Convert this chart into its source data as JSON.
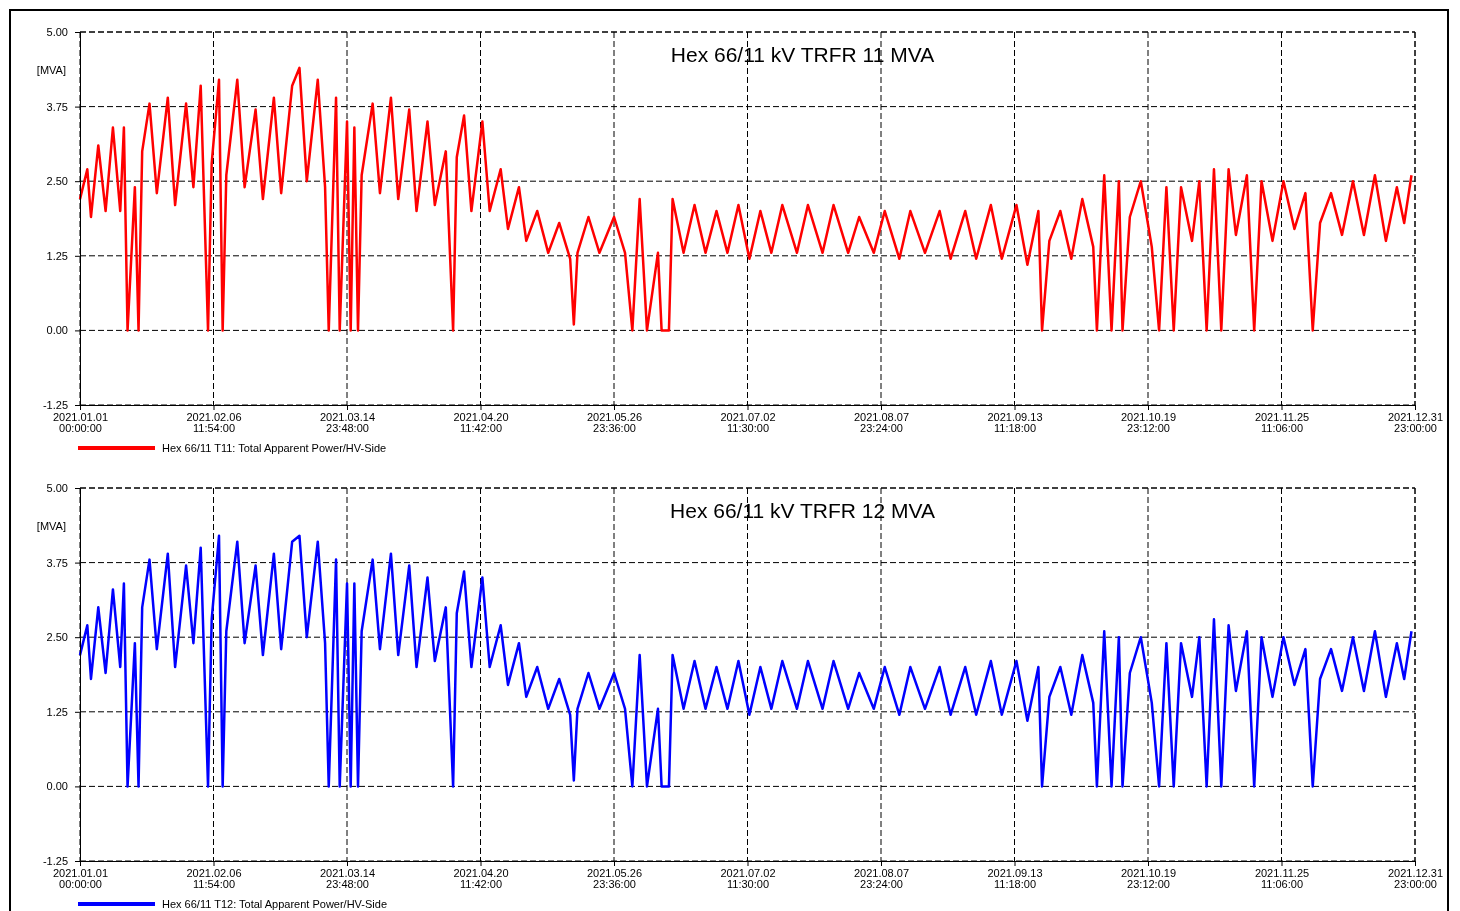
{
  "chart_data": [
    {
      "type": "line",
      "title": "Hex 66/11 kV TRFR 11 MVA",
      "ylabel": "[MVA]",
      "x": [
        "2021-01-01",
        "2021-01-03",
        "2021-01-04",
        "2021-01-06",
        "2021-01-08",
        "2021-01-10",
        "2021-01-12",
        "2021-01-13",
        "2021-01-14",
        "2021-01-16",
        "2021-01-17",
        "2021-01-18",
        "2021-01-20",
        "2021-01-22",
        "2021-01-25",
        "2021-01-27",
        "2021-01-30",
        "2021-02-01",
        "2021-02-03",
        "2021-02-05",
        "2021-02-06",
        "2021-02-08",
        "2021-02-09",
        "2021-02-10",
        "2021-02-13",
        "2021-02-15",
        "2021-02-18",
        "2021-02-20",
        "2021-02-23",
        "2021-02-25",
        "2021-02-28",
        "2021-03-02",
        "2021-03-04",
        "2021-03-07",
        "2021-03-09",
        "2021-03-10",
        "2021-03-12",
        "2021-03-13",
        "2021-03-15",
        "2021-03-16",
        "2021-03-17",
        "2021-03-18",
        "2021-03-19",
        "2021-03-22",
        "2021-03-24",
        "2021-03-27",
        "2021-03-29",
        "2021-04-01",
        "2021-04-03",
        "2021-04-06",
        "2021-04-08",
        "2021-04-11",
        "2021-04-13",
        "2021-04-14",
        "2021-04-16",
        "2021-04-18",
        "2021-04-21",
        "2021-04-23",
        "2021-04-26",
        "2021-04-28",
        "2021-05-01",
        "2021-05-03",
        "2021-05-06",
        "2021-05-09",
        "2021-05-12",
        "2021-05-15",
        "2021-05-16",
        "2021-05-17",
        "2021-05-20",
        "2021-05-23",
        "2021-05-27",
        "2021-05-30",
        "2021-06-01",
        "2021-06-03",
        "2021-06-05",
        "2021-06-08",
        "2021-06-09",
        "2021-06-11",
        "2021-06-12",
        "2021-06-15",
        "2021-06-18",
        "2021-06-21",
        "2021-06-24",
        "2021-06-27",
        "2021-06-30",
        "2021-07-03",
        "2021-07-06",
        "2021-07-09",
        "2021-07-12",
        "2021-07-16",
        "2021-07-19",
        "2021-07-23",
        "2021-07-26",
        "2021-07-30",
        "2021-08-02",
        "2021-08-06",
        "2021-08-09",
        "2021-08-13",
        "2021-08-16",
        "2021-08-20",
        "2021-08-24",
        "2021-08-27",
        "2021-08-31",
        "2021-09-03",
        "2021-09-07",
        "2021-09-10",
        "2021-09-14",
        "2021-09-17",
        "2021-09-20",
        "2021-09-21",
        "2021-09-23",
        "2021-09-26",
        "2021-09-29",
        "2021-10-02",
        "2021-10-05",
        "2021-10-06",
        "2021-10-08",
        "2021-10-10",
        "2021-10-12",
        "2021-10-13",
        "2021-10-15",
        "2021-10-18",
        "2021-10-21",
        "2021-10-23",
        "2021-10-25",
        "2021-10-27",
        "2021-10-29",
        "2021-11-01",
        "2021-11-03",
        "2021-11-05",
        "2021-11-07",
        "2021-11-09",
        "2021-11-11",
        "2021-11-13",
        "2021-11-16",
        "2021-11-18",
        "2021-11-20",
        "2021-11-23",
        "2021-11-26",
        "2021-11-29",
        "2021-12-02",
        "2021-12-04",
        "2021-12-06",
        "2021-12-09",
        "2021-12-12",
        "2021-12-15",
        "2021-12-18",
        "2021-12-21",
        "2021-12-24",
        "2021-12-27",
        "2021-12-29",
        "2021-12-31"
      ],
      "series": [
        {
          "name": "Hex 66/11 T11: Total Apparent Power/HV-Side",
          "color": "#ff0000",
          "values": [
            2.2,
            2.7,
            1.9,
            3.1,
            2.0,
            3.4,
            2.0,
            3.4,
            0,
            2.4,
            0,
            3.0,
            3.8,
            2.3,
            3.9,
            2.1,
            3.8,
            2.4,
            4.1,
            0,
            2.8,
            4.2,
            0,
            2.6,
            4.2,
            2.4,
            3.7,
            2.2,
            3.9,
            2.3,
            4.1,
            4.4,
            2.5,
            4.2,
            2.4,
            0,
            3.9,
            0,
            3.5,
            0,
            3.4,
            0,
            2.6,
            3.8,
            2.3,
            3.9,
            2.2,
            3.7,
            2.0,
            3.5,
            2.1,
            3.0,
            0,
            2.9,
            3.6,
            2.0,
            3.5,
            2.0,
            2.7,
            1.7,
            2.4,
            1.5,
            2.0,
            1.3,
            1.8,
            1.2,
            0.1,
            1.3,
            1.9,
            1.3,
            1.9,
            1.3,
            0,
            2.2,
            0,
            1.3,
            0,
            0,
            2.2,
            1.3,
            2.1,
            1.3,
            2.0,
            1.3,
            2.1,
            1.2,
            2.0,
            1.3,
            2.1,
            1.3,
            2.1,
            1.3,
            2.1,
            1.3,
            1.9,
            1.3,
            2.0,
            1.2,
            2.0,
            1.3,
            2.0,
            1.2,
            2.0,
            1.2,
            2.1,
            1.2,
            2.1,
            1.1,
            2.0,
            0,
            1.5,
            2.0,
            1.2,
            2.2,
            1.4,
            0,
            2.6,
            0,
            2.5,
            0,
            1.9,
            2.5,
            1.4,
            0,
            2.4,
            0,
            2.4,
            1.5,
            2.5,
            0,
            2.7,
            0,
            2.7,
            1.6,
            2.6,
            0,
            2.5,
            1.5,
            2.5,
            1.7,
            2.3,
            0,
            1.8,
            2.3,
            1.6,
            2.5,
            1.6,
            2.6,
            1.5,
            2.4,
            1.8,
            2.6
          ]
        }
      ],
      "xlim": [
        "2021-01-01T00:00",
        "2021-12-31T23:00"
      ],
      "xticks": [
        {
          "value": "2021-01-01T00:00",
          "label": "2021.01.01\n00:00:00"
        },
        {
          "value": "2021-02-06T11:54",
          "label": "2021.02.06\n11:54:00"
        },
        {
          "value": "2021-03-14T23:48",
          "label": "2021.03.14\n23:48:00"
        },
        {
          "value": "2021-04-20T11:42",
          "label": "2021.04.20\n11:42:00"
        },
        {
          "value": "2021-05-26T23:36",
          "label": "2021.05.26\n23:36:00"
        },
        {
          "value": "2021-07-02T11:30",
          "label": "2021.07.02\n11:30:00"
        },
        {
          "value": "2021-08-07T23:24",
          "label": "2021.08.07\n23:24:00"
        },
        {
          "value": "2021-09-13T11:18",
          "label": "2021.09.13\n11:18:00"
        },
        {
          "value": "2021-10-19T23:12",
          "label": "2021.10.19\n23:12:00"
        },
        {
          "value": "2021-11-25T11:06",
          "label": "2021.11.25\n11:06:00"
        },
        {
          "value": "2021-12-31T23:00",
          "label": "2021.12.31\n23:00:00"
        }
      ],
      "ylim": [
        -1.25,
        5
      ],
      "yticks": [
        {
          "value": -1.25,
          "label": "-1.25"
        },
        {
          "value": 0,
          "label": "0.00"
        },
        {
          "value": 1.25,
          "label": "1.25"
        },
        {
          "value": 2.5,
          "label": "2.50"
        },
        {
          "value": 3.75,
          "label": "3.75"
        },
        {
          "value": 5,
          "label": "5.00"
        }
      ],
      "grid": true,
      "legend": "bottom"
    },
    {
      "type": "line",
      "title": "Hex 66/11 kV TRFR 12 MVA",
      "ylabel": "[MVA]",
      "x": [
        "2021-01-01",
        "2021-01-03",
        "2021-01-04",
        "2021-01-06",
        "2021-01-08",
        "2021-01-10",
        "2021-01-12",
        "2021-01-13",
        "2021-01-14",
        "2021-01-16",
        "2021-01-17",
        "2021-01-18",
        "2021-01-20",
        "2021-01-22",
        "2021-01-25",
        "2021-01-27",
        "2021-01-30",
        "2021-02-01",
        "2021-02-03",
        "2021-02-05",
        "2021-02-06",
        "2021-02-08",
        "2021-02-09",
        "2021-02-10",
        "2021-02-13",
        "2021-02-15",
        "2021-02-18",
        "2021-02-20",
        "2021-02-23",
        "2021-02-25",
        "2021-02-28",
        "2021-03-02",
        "2021-03-04",
        "2021-03-07",
        "2021-03-09",
        "2021-03-10",
        "2021-03-12",
        "2021-03-13",
        "2021-03-15",
        "2021-03-16",
        "2021-03-17",
        "2021-03-18",
        "2021-03-19",
        "2021-03-22",
        "2021-03-24",
        "2021-03-27",
        "2021-03-29",
        "2021-04-01",
        "2021-04-03",
        "2021-04-06",
        "2021-04-08",
        "2021-04-11",
        "2021-04-13",
        "2021-04-14",
        "2021-04-16",
        "2021-04-18",
        "2021-04-21",
        "2021-04-23",
        "2021-04-26",
        "2021-04-28",
        "2021-05-01",
        "2021-05-03",
        "2021-05-06",
        "2021-05-09",
        "2021-05-12",
        "2021-05-15",
        "2021-05-16",
        "2021-05-17",
        "2021-05-20",
        "2021-05-23",
        "2021-05-27",
        "2021-05-30",
        "2021-06-01",
        "2021-06-03",
        "2021-06-05",
        "2021-06-08",
        "2021-06-09",
        "2021-06-11",
        "2021-06-12",
        "2021-06-15",
        "2021-06-18",
        "2021-06-21",
        "2021-06-24",
        "2021-06-27",
        "2021-06-30",
        "2021-07-03",
        "2021-07-06",
        "2021-07-09",
        "2021-07-12",
        "2021-07-16",
        "2021-07-19",
        "2021-07-23",
        "2021-07-26",
        "2021-07-30",
        "2021-08-02",
        "2021-08-06",
        "2021-08-09",
        "2021-08-13",
        "2021-08-16",
        "2021-08-20",
        "2021-08-24",
        "2021-08-27",
        "2021-08-31",
        "2021-09-03",
        "2021-09-07",
        "2021-09-10",
        "2021-09-14",
        "2021-09-17",
        "2021-09-20",
        "2021-09-21",
        "2021-09-23",
        "2021-09-26",
        "2021-09-29",
        "2021-10-02",
        "2021-10-05",
        "2021-10-06",
        "2021-10-08",
        "2021-10-10",
        "2021-10-12",
        "2021-10-13",
        "2021-10-15",
        "2021-10-18",
        "2021-10-21",
        "2021-10-23",
        "2021-10-25",
        "2021-10-27",
        "2021-10-29",
        "2021-11-01",
        "2021-11-03",
        "2021-11-05",
        "2021-11-07",
        "2021-11-09",
        "2021-11-11",
        "2021-11-13",
        "2021-11-16",
        "2021-11-18",
        "2021-11-20",
        "2021-11-23",
        "2021-11-26",
        "2021-11-29",
        "2021-12-02",
        "2021-12-04",
        "2021-12-06",
        "2021-12-09",
        "2021-12-12",
        "2021-12-15",
        "2021-12-18",
        "2021-12-21",
        "2021-12-24",
        "2021-12-27",
        "2021-12-29",
        "2021-12-31"
      ],
      "series": [
        {
          "name": "Hex 66/11 T12: Total Apparent Power/HV-Side",
          "color": "#0000ff",
          "values": [
            2.2,
            2.7,
            1.8,
            3.0,
            1.9,
            3.3,
            2.0,
            3.4,
            0,
            2.4,
            0,
            3.0,
            3.8,
            2.3,
            3.9,
            2.0,
            3.7,
            2.4,
            4.0,
            0,
            2.8,
            4.2,
            0,
            2.6,
            4.1,
            2.4,
            3.7,
            2.2,
            3.9,
            2.3,
            4.1,
            4.2,
            2.5,
            4.1,
            2.4,
            0,
            3.8,
            0,
            3.4,
            0,
            3.4,
            0,
            2.6,
            3.8,
            2.3,
            3.9,
            2.2,
            3.7,
            2.0,
            3.5,
            2.1,
            3.0,
            0,
            2.9,
            3.6,
            2.0,
            3.5,
            2.0,
            2.7,
            1.7,
            2.4,
            1.5,
            2.0,
            1.3,
            1.8,
            1.2,
            0.1,
            1.3,
            1.9,
            1.3,
            1.9,
            1.3,
            0,
            2.2,
            0,
            1.3,
            0,
            0,
            2.2,
            1.3,
            2.1,
            1.3,
            2.0,
            1.3,
            2.1,
            1.2,
            2.0,
            1.3,
            2.1,
            1.3,
            2.1,
            1.3,
            2.1,
            1.3,
            1.9,
            1.3,
            2.0,
            1.2,
            2.0,
            1.3,
            2.0,
            1.2,
            2.0,
            1.2,
            2.1,
            1.2,
            2.1,
            1.1,
            2.0,
            0,
            1.5,
            2.0,
            1.2,
            2.2,
            1.4,
            0,
            2.6,
            0,
            2.5,
            0,
            1.9,
            2.5,
            1.4,
            0,
            2.4,
            0,
            2.4,
            1.5,
            2.5,
            0,
            2.8,
            0,
            2.7,
            1.6,
            2.6,
            0,
            2.5,
            1.5,
            2.5,
            1.7,
            2.3,
            0,
            1.8,
            2.3,
            1.6,
            2.5,
            1.6,
            2.6,
            1.5,
            2.4,
            1.8,
            2.6
          ]
        }
      ],
      "xlim": [
        "2021-01-01T00:00",
        "2021-12-31T23:00"
      ],
      "xticks": [
        {
          "value": "2021-01-01T00:00",
          "label": "2021.01.01\n00:00:00"
        },
        {
          "value": "2021-02-06T11:54",
          "label": "2021.02.06\n11:54:00"
        },
        {
          "value": "2021-03-14T23:48",
          "label": "2021.03.14\n23:48:00"
        },
        {
          "value": "2021-04-20T11:42",
          "label": "2021.04.20\n11:42:00"
        },
        {
          "value": "2021-05-26T23:36",
          "label": "2021.05.26\n23:36:00"
        },
        {
          "value": "2021-07-02T11:30",
          "label": "2021.07.02\n11:30:00"
        },
        {
          "value": "2021-08-07T23:24",
          "label": "2021.08.07\n23:24:00"
        },
        {
          "value": "2021-09-13T11:18",
          "label": "2021.09.13\n11:18:00"
        },
        {
          "value": "2021-10-19T23:12",
          "label": "2021.10.19\n23:12:00"
        },
        {
          "value": "2021-11-25T11:06",
          "label": "2021.11.25\n11:06:00"
        },
        {
          "value": "2021-12-31T23:00",
          "label": "2021.12.31\n23:00:00"
        }
      ],
      "ylim": [
        -1.25,
        5
      ],
      "yticks": [
        {
          "value": -1.25,
          "label": "-1.25"
        },
        {
          "value": 0,
          "label": "0.00"
        },
        {
          "value": 1.25,
          "label": "1.25"
        },
        {
          "value": 2.5,
          "label": "2.50"
        },
        {
          "value": 3.75,
          "label": "3.75"
        },
        {
          "value": 5,
          "label": "5.00"
        }
      ],
      "grid": true,
      "legend": "bottom"
    }
  ]
}
